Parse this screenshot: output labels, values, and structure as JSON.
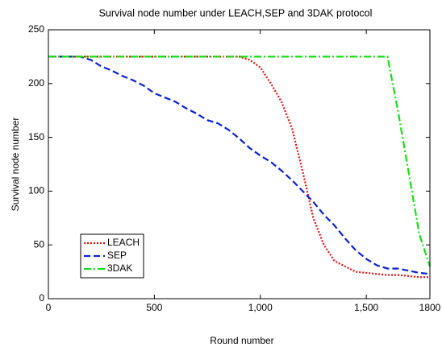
{
  "chart_data": {
    "type": "line",
    "title": "Survival node number  under LEACH,SEP and 3DAK protocol",
    "xlabel": "Round number",
    "ylabel": "Survival node number",
    "x": [
      0,
      50,
      100,
      150,
      200,
      250,
      300,
      350,
      400,
      450,
      500,
      550,
      600,
      650,
      700,
      750,
      800,
      850,
      900,
      950,
      1000,
      1050,
      1100,
      1150,
      1200,
      1250,
      1300,
      1350,
      1400,
      1450,
      1500,
      1550,
      1600,
      1650,
      1700,
      1750,
      1800
    ],
    "series": [
      {
        "name": "LEACH",
        "color": "#e01010",
        "linestyle": "dotted",
        "values": [
          225,
          225,
          225,
          225,
          225,
          225,
          225,
          225,
          225,
          225,
          225,
          225,
          225,
          225,
          225,
          225,
          225,
          225,
          225,
          222,
          215,
          200,
          183,
          158,
          118,
          75,
          50,
          35,
          30,
          25,
          24,
          23,
          22,
          22,
          21,
          20,
          20
        ]
      },
      {
        "name": "SEP",
        "color": "#0a22d0",
        "linestyle": "dashed",
        "values": [
          225,
          225,
          225,
          225,
          222,
          216,
          212,
          207,
          203,
          198,
          191,
          187,
          183,
          177,
          172,
          166,
          163,
          157,
          149,
          140,
          133,
          127,
          119,
          110,
          100,
          90,
          78,
          68,
          56,
          45,
          37,
          31,
          28,
          28,
          26,
          24,
          23
        ]
      },
      {
        "name": "3DAK",
        "color": "#10e010",
        "linestyle": "dashdot",
        "values": [
          225,
          225,
          225,
          225,
          225,
          225,
          225,
          225,
          225,
          225,
          225,
          225,
          225,
          225,
          225,
          225,
          225,
          225,
          225,
          225,
          225,
          225,
          225,
          225,
          225,
          225,
          225,
          225,
          225,
          225,
          225,
          225,
          225,
          174,
          117,
          60,
          30
        ]
      }
    ],
    "xlim": [
      0,
      1800
    ],
    "xticks": [
      0,
      500,
      {
        "value": 1000,
        "label": "1,000"
      },
      {
        "value": 1500,
        "label": "1,500"
      },
      1800
    ],
    "ylim": [
      0,
      250
    ],
    "yticks": [
      0,
      50,
      100,
      150,
      200,
      250
    ],
    "legend": "lower left"
  }
}
